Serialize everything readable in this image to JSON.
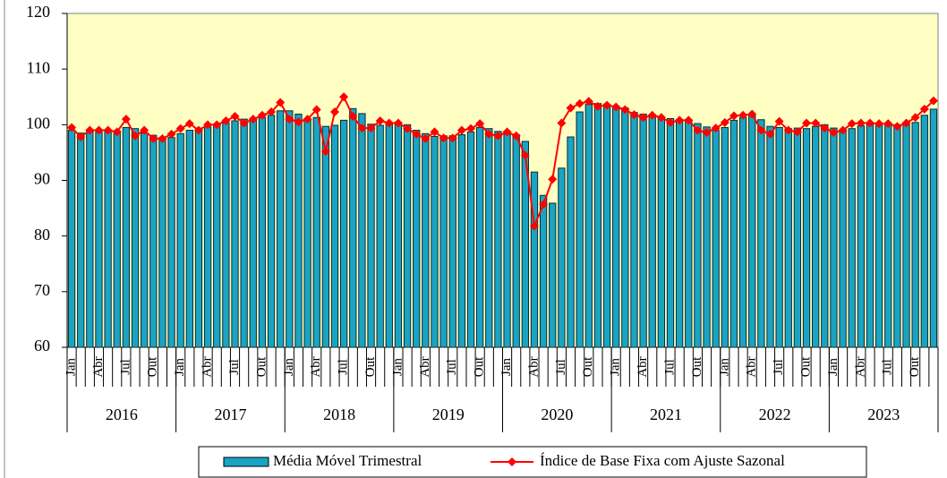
{
  "chart_data": {
    "type": "bar",
    "categories": [
      "Jan",
      null,
      null,
      "Abr",
      null,
      null,
      "Jul",
      null,
      null,
      "Out",
      null,
      null,
      "Jan",
      null,
      null,
      "Abr",
      null,
      null,
      "Jul",
      null,
      null,
      "Out",
      null,
      null,
      "Jan",
      null,
      null,
      "Abr",
      null,
      null,
      "Jul",
      null,
      null,
      "Out",
      null,
      null,
      "Jan",
      null,
      null,
      "Abr",
      null,
      null,
      "Jul",
      null,
      null,
      "Out",
      null,
      null,
      "Jan",
      null,
      null,
      "Abr",
      null,
      null,
      "Jul",
      null,
      null,
      "Out",
      null,
      null,
      "Jan",
      null,
      null,
      "Abr",
      null,
      null,
      "Jul",
      null,
      null,
      "Out",
      null,
      null,
      "Jan",
      null,
      null,
      "Abr",
      null,
      null,
      "Jul",
      null,
      null,
      "Out",
      null,
      null,
      "Jan",
      null,
      null,
      "Abr",
      null,
      null,
      "Jul",
      null,
      null,
      "Out",
      null,
      null
    ],
    "groups": [
      "2016",
      "2017",
      "2018",
      "2019",
      "2020",
      "2021",
      "2022",
      "2023"
    ],
    "series": [
      {
        "name": "Média Móvel Trimestral",
        "type": "bar",
        "color": "#1ba3c4",
        "values": [
          99,
          98.5,
          98.8,
          98.7,
          99,
          98.9,
          99.5,
          99.3,
          98.5,
          98.1,
          97.7,
          97.7,
          98.4,
          99,
          99.4,
          99.6,
          99.8,
          100.3,
          100.7,
          101,
          101,
          101.3,
          101.7,
          102.5,
          102.5,
          101.9,
          100.8,
          101.3,
          99.7,
          99.9,
          100.8,
          102.9,
          102,
          100.1,
          99.9,
          100.1,
          100.4,
          100,
          99,
          98.4,
          97.9,
          98,
          98,
          98.2,
          98.7,
          99.5,
          99.3,
          98.8,
          98.3,
          98.2,
          97,
          91.5,
          87.3,
          85.9,
          92.2,
          97.8,
          102.3,
          103.7,
          103.8,
          103.7,
          103.3,
          103,
          102.2,
          101.9,
          101.6,
          101.4,
          101.1,
          100.8,
          100.6,
          100.2,
          99.6,
          99,
          99.5,
          100.8,
          101.3,
          101.8,
          100.9,
          99.7,
          99.5,
          99.3,
          99.4,
          99.3,
          99.7,
          100,
          99.4,
          98.9,
          99.3,
          99.8,
          100.3,
          100.3,
          100.2,
          100,
          100,
          100.4,
          101.7,
          102.8
        ]
      },
      {
        "name": "Índice de Base Fixa com Ajuste Sazonal",
        "type": "line",
        "color": "#ff0000",
        "values": [
          99.5,
          97.8,
          99,
          99,
          99,
          98.7,
          101,
          98,
          99,
          97.5,
          97.5,
          98.3,
          99.3,
          100.2,
          99,
          100,
          100,
          100.7,
          101.5,
          100.3,
          101,
          101.7,
          102.3,
          104,
          101,
          100.5,
          101,
          102.7,
          95.2,
          102.3,
          105,
          101.5,
          99.4,
          99.4,
          100.7,
          100.3,
          100.3,
          99.3,
          98.3,
          97.5,
          98.7,
          97.6,
          97.6,
          99,
          99.3,
          100.2,
          98.3,
          98,
          98.7,
          98,
          94.5,
          81.8,
          85.7,
          90.2,
          100.3,
          103,
          103.8,
          104.2,
          103.3,
          103.5,
          103.2,
          102.7,
          101.8,
          101.3,
          101.7,
          101.3,
          100.4,
          100.8,
          100.8,
          99,
          98.6,
          99.4,
          100.4,
          101.6,
          101.7,
          101.9,
          99,
          98.3,
          100.6,
          99,
          98.7,
          100.3,
          100.3,
          99.4,
          98.6,
          99,
          100.2,
          100.3,
          100.3,
          100.2,
          100.2,
          99.7,
          100.3,
          101.3,
          102.8,
          104.3
        ]
      }
    ],
    "ylim": [
      60,
      120
    ],
    "yticks": [
      60,
      70,
      80,
      90,
      100,
      110,
      120
    ],
    "grid": false,
    "background": "#ffffc4"
  }
}
